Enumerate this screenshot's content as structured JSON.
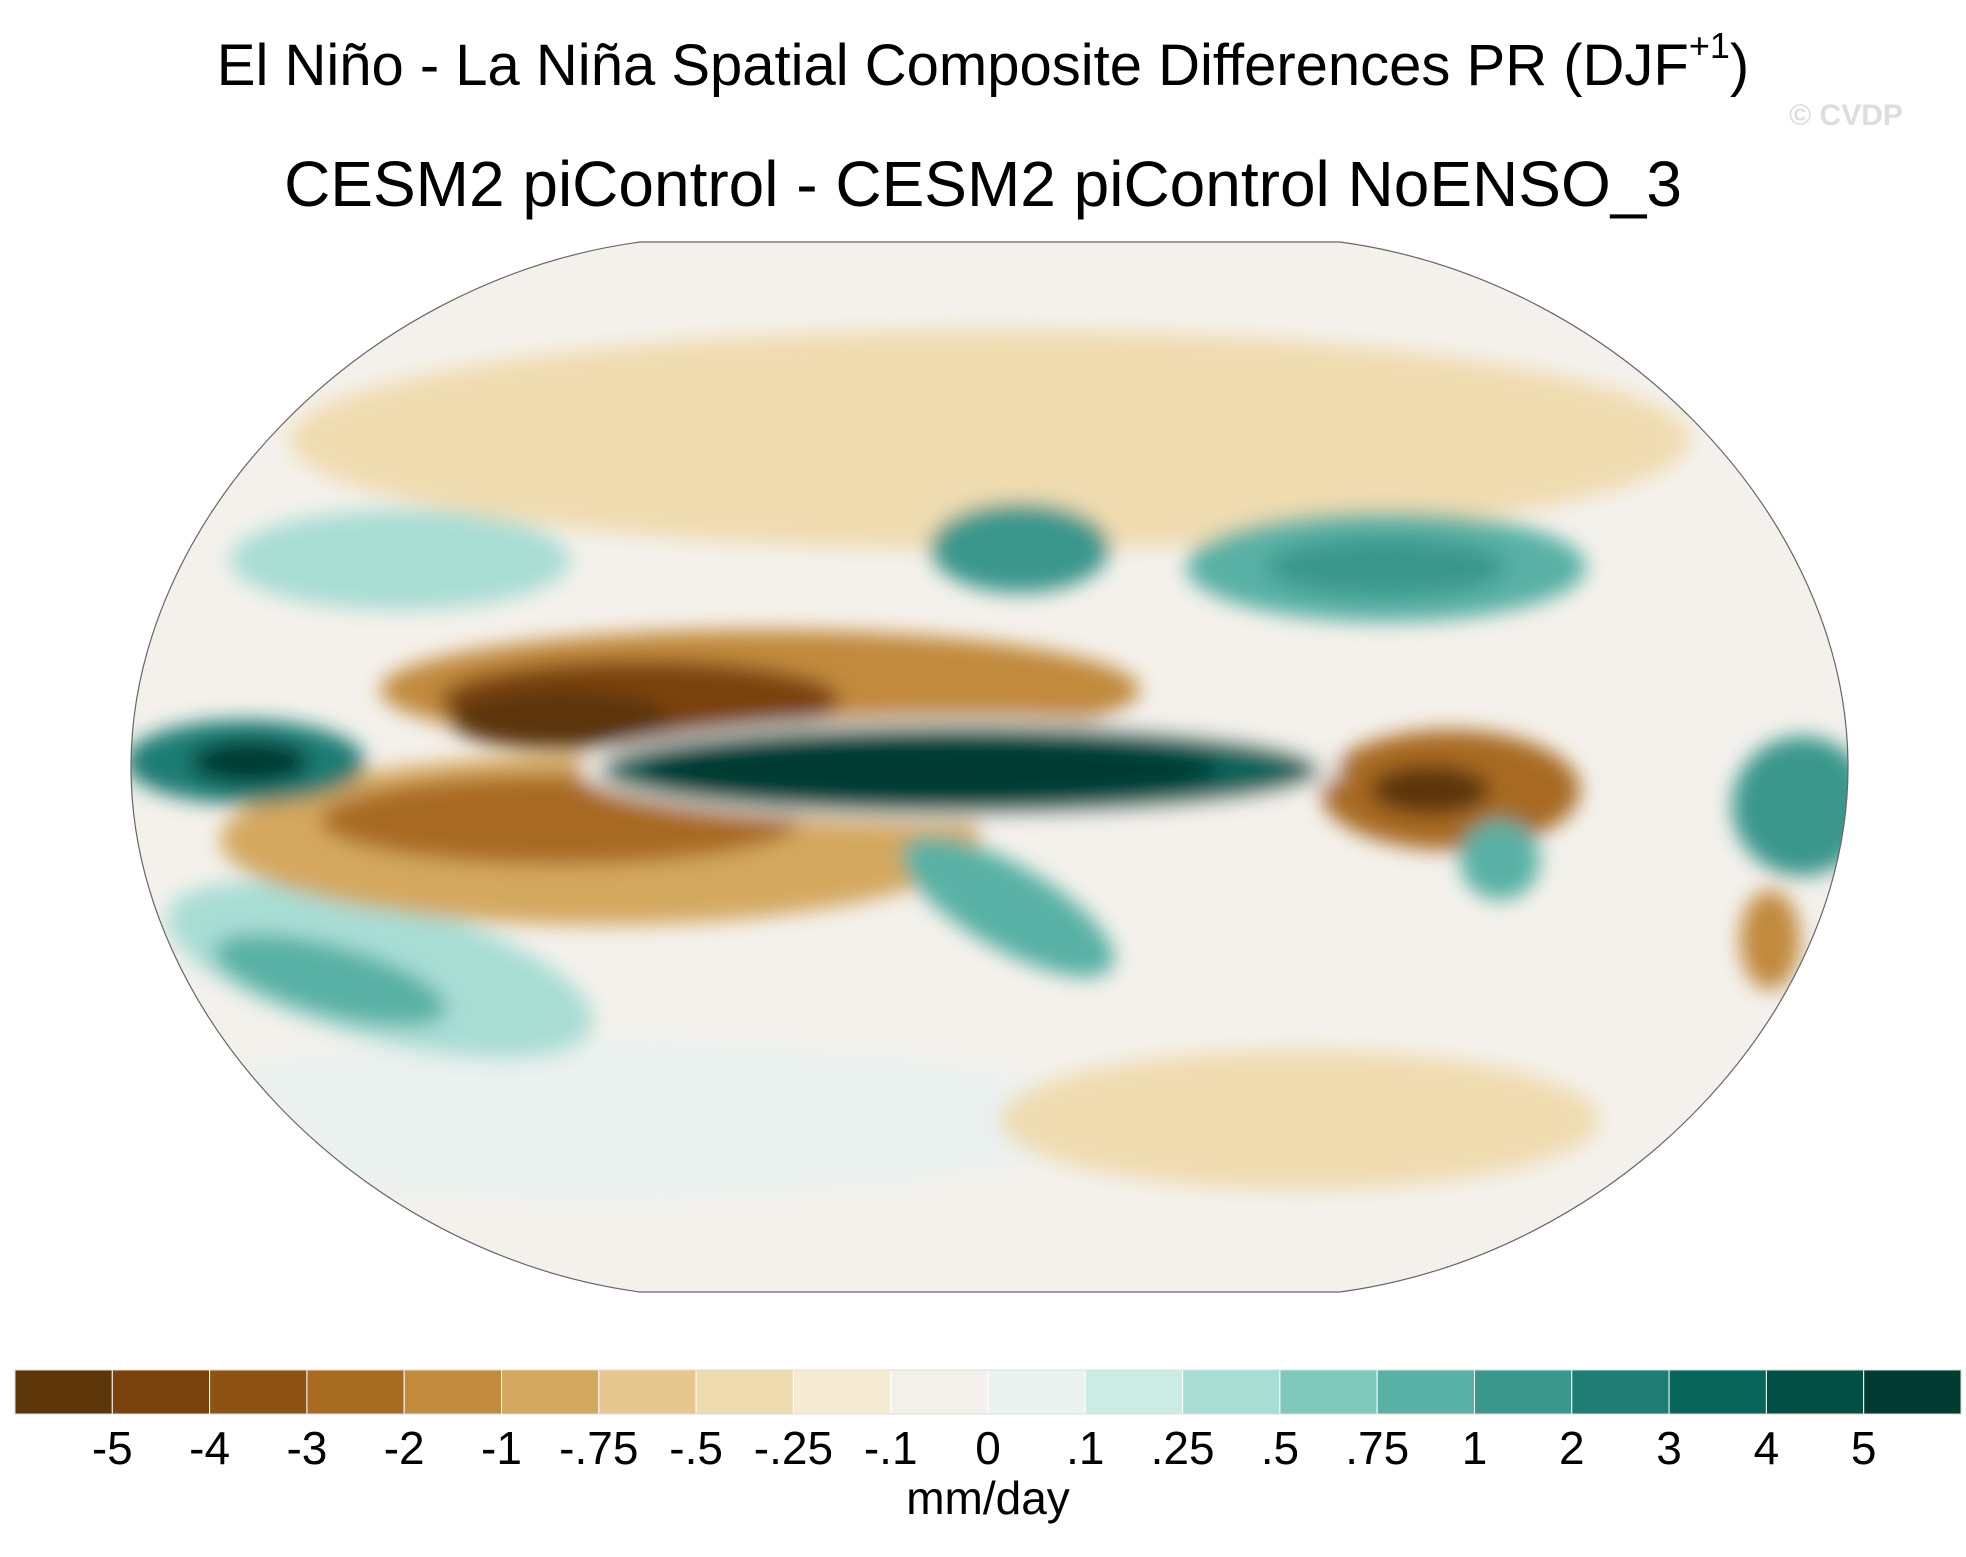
{
  "chart_data": {
    "type": "colormap",
    "title": "El Niño - La Niña Spatial Composite Differences PR (DJF",
    "title_superscript": "+1",
    "title_suffix": ")",
    "subtitle": "CESM2 piControl - CESM2 piControl NoENSO_3",
    "watermark": "© CVDP",
    "colorbar": {
      "units": "mm/day",
      "colors": [
        "#5c3509",
        "#7a420d",
        "#8e5313",
        "#a86b22",
        "#c18a3c",
        "#d4a85f",
        "#e5c68c",
        "#efdbb0",
        "#f5ebd2",
        "#f4f1ec",
        "#eaf1ef",
        "#cdebe5",
        "#a8ddd4",
        "#7fc9bc",
        "#58b1a4",
        "#3a978c",
        "#1f7d73",
        "#07655a",
        "#014f45",
        "#003a30"
      ],
      "ticks": [
        -5,
        -4,
        -3,
        -2,
        -1,
        {
          "value": -0.75,
          "label": "-.75"
        },
        {
          "value": -0.5,
          "label": "-.5"
        },
        {
          "value": -0.25,
          "label": "-.25"
        },
        {
          "value": -0.1,
          "label": "-.1"
        },
        0,
        {
          "value": 0.1,
          "label": ".1"
        },
        {
          "value": 0.25,
          "label": ".25"
        },
        {
          "value": 0.5,
          "label": ".5"
        },
        {
          "value": 0.75,
          "label": ".75"
        },
        1,
        2,
        3,
        4,
        5
      ]
    }
  }
}
